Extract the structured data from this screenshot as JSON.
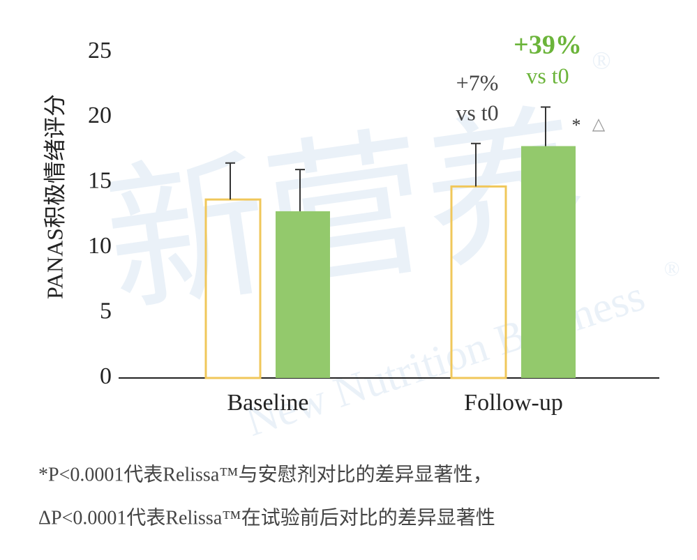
{
  "chart_data": {
    "type": "bar",
    "ylabel": "PANAS积极情绪评分",
    "categories": [
      "Baseline",
      "Follow-up"
    ],
    "series": [
      {
        "color": "#f0c75a",
        "fill": "none",
        "values": [
          13.7,
          14.7
        ],
        "errors": [
          2.8,
          3.3
        ]
      },
      {
        "color": "#93c96c",
        "fill": "#93c96c",
        "values": [
          12.8,
          17.8
        ],
        "errors": [
          3.2,
          3.0
        ]
      }
    ],
    "ylim": [
      0,
      25
    ],
    "yticks": [
      0,
      5,
      10,
      15,
      20,
      25
    ],
    "grid": false,
    "annotations": [
      "+7%",
      "vs t0",
      "+39%",
      "vs t0",
      "*",
      "△"
    ],
    "footnotes": [
      "*P<0.0001代表Relissa™与安慰剂对比的差异显著性，",
      "ΔP<0.0001代表Relissa™在试验前后对比的差异显著性"
    ],
    "watermark": [
      "新营养",
      "New Nutrition Business",
      "®",
      "®"
    ]
  }
}
